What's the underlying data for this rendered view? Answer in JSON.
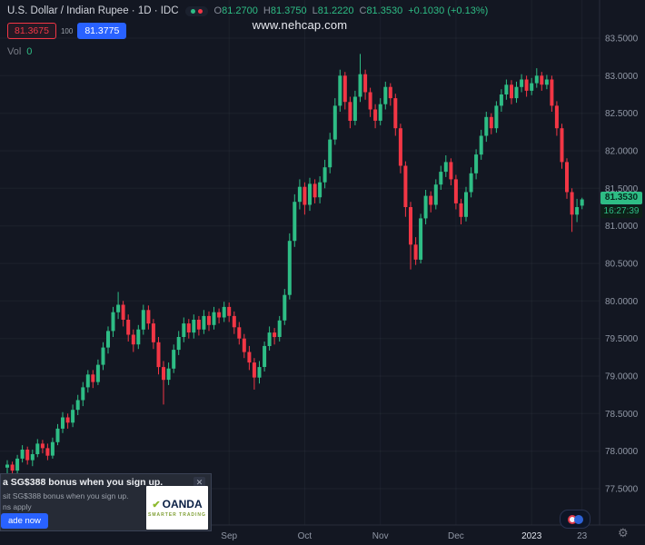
{
  "header": {
    "title": "U.S. Dollar / Indian Rupee · 1D · IDC",
    "ohlc": {
      "o_label": "O",
      "o": "81.2700",
      "h_label": "H",
      "h": "81.3750",
      "l_label": "L",
      "l": "81.2220",
      "c_label": "C",
      "c": "81.3530",
      "change": "+0.1030 (+0.13%)"
    },
    "sell_price": "81.3675",
    "quantity": "100",
    "buy_price": "81.3775",
    "vol_label": "Vol",
    "vol_value": "0"
  },
  "watermark": "www.nehcap.com",
  "price_label": {
    "value": "81.3530",
    "countdown": "16:27:39"
  },
  "ad": {
    "headline": "a SG$388 bonus when you sign up.",
    "subtext": "sit SG$388 bonus when you sign up.",
    "terms": "ns apply",
    "cta": "ade now",
    "brand": "OANDA",
    "brand_tagline": "SMARTER TRADING",
    "close": "✕"
  },
  "chart_data": {
    "type": "candlestick",
    "title": "U.S. Dollar / Indian Rupee",
    "interval": "1D",
    "exchange": "IDC",
    "y_range": [
      77.5,
      83.5
    ],
    "grid": true,
    "last_price": 81.353,
    "up_color": "#2ebd85",
    "down_color": "#f23645",
    "price_ticks": [
      "83.5000",
      "83.0000",
      "82.5000",
      "82.0000",
      "81.5000",
      "81.0000",
      "80.5000",
      "80.0000",
      "79.5000",
      "79.0000",
      "78.5000",
      "78.0000",
      "77.5000"
    ],
    "time_ticks": [
      {
        "label": "Sep",
        "index": 44,
        "major": false
      },
      {
        "label": "Oct",
        "index": 59,
        "major": false
      },
      {
        "label": "Nov",
        "index": 74,
        "major": false
      },
      {
        "label": "Dec",
        "index": 89,
        "major": false
      },
      {
        "label": "2023",
        "index": 104,
        "major": true
      },
      {
        "label": "23",
        "index": 114,
        "major": false
      }
    ],
    "ohlc": [
      [
        77.78,
        77.88,
        77.7,
        77.82
      ],
      [
        77.82,
        77.86,
        77.66,
        77.74
      ],
      [
        77.74,
        77.95,
        77.7,
        77.9
      ],
      [
        77.9,
        78.08,
        77.85,
        78.02
      ],
      [
        78.02,
        78.06,
        77.82,
        77.88
      ],
      [
        77.88,
        78.02,
        77.8,
        77.96
      ],
      [
        77.96,
        78.16,
        77.92,
        78.1
      ],
      [
        78.1,
        78.15,
        77.97,
        78.04
      ],
      [
        78.04,
        78.1,
        77.88,
        77.94
      ],
      [
        77.94,
        78.18,
        77.9,
        78.12
      ],
      [
        78.12,
        78.36,
        78.08,
        78.3
      ],
      [
        78.3,
        78.52,
        78.24,
        78.45
      ],
      [
        78.45,
        78.5,
        78.3,
        78.38
      ],
      [
        78.38,
        78.62,
        78.32,
        78.55
      ],
      [
        78.55,
        78.75,
        78.48,
        78.68
      ],
      [
        78.68,
        78.92,
        78.6,
        78.85
      ],
      [
        78.85,
        79.08,
        78.78,
        79.02
      ],
      [
        79.02,
        79.08,
        78.84,
        78.92
      ],
      [
        78.92,
        79.22,
        78.88,
        79.15
      ],
      [
        79.15,
        79.45,
        79.08,
        79.38
      ],
      [
        79.38,
        79.66,
        79.3,
        79.6
      ],
      [
        79.6,
        79.92,
        79.52,
        79.85
      ],
      [
        79.85,
        80.12,
        79.76,
        79.95
      ],
      [
        79.95,
        80.0,
        79.66,
        79.75
      ],
      [
        79.75,
        79.82,
        79.46,
        79.55
      ],
      [
        79.55,
        79.62,
        79.32,
        79.42
      ],
      [
        79.42,
        79.68,
        79.36,
        79.62
      ],
      [
        79.62,
        79.95,
        79.55,
        79.88
      ],
      [
        79.88,
        79.94,
        79.62,
        79.7
      ],
      [
        79.7,
        79.76,
        79.36,
        79.45
      ],
      [
        79.45,
        79.52,
        79.02,
        79.12
      ],
      [
        79.12,
        79.2,
        78.62,
        78.95
      ],
      [
        78.95,
        79.18,
        78.88,
        79.1
      ],
      [
        79.1,
        79.42,
        79.04,
        79.35
      ],
      [
        79.35,
        79.6,
        79.28,
        79.52
      ],
      [
        79.52,
        79.78,
        79.45,
        79.7
      ],
      [
        79.7,
        79.76,
        79.5,
        79.58
      ],
      [
        79.58,
        79.82,
        79.5,
        79.75
      ],
      [
        79.75,
        79.8,
        79.54,
        79.62
      ],
      [
        79.62,
        79.88,
        79.56,
        79.8
      ],
      [
        79.8,
        79.86,
        79.6,
        79.68
      ],
      [
        79.68,
        79.92,
        79.62,
        79.85
      ],
      [
        79.85,
        79.9,
        79.7,
        79.78
      ],
      [
        79.78,
        79.99,
        79.72,
        79.92
      ],
      [
        79.92,
        79.98,
        79.72,
        79.8
      ],
      [
        79.8,
        79.86,
        79.56,
        79.65
      ],
      [
        79.65,
        79.72,
        79.42,
        79.5
      ],
      [
        79.5,
        79.56,
        79.24,
        79.32
      ],
      [
        79.32,
        79.4,
        79.08,
        79.18
      ],
      [
        79.18,
        79.24,
        78.82,
        78.98
      ],
      [
        78.98,
        79.2,
        78.9,
        79.12
      ],
      [
        79.12,
        79.46,
        79.06,
        79.4
      ],
      [
        79.4,
        79.66,
        79.34,
        79.58
      ],
      [
        79.58,
        79.64,
        79.42,
        79.52
      ],
      [
        79.52,
        79.8,
        79.46,
        79.74
      ],
      [
        79.74,
        80.16,
        79.68,
        80.08
      ],
      [
        80.08,
        80.9,
        80.02,
        80.8
      ],
      [
        80.8,
        81.42,
        80.72,
        81.32
      ],
      [
        81.32,
        81.62,
        81.22,
        81.52
      ],
      [
        81.52,
        81.58,
        81.15,
        81.28
      ],
      [
        81.28,
        81.64,
        81.2,
        81.56
      ],
      [
        81.56,
        81.62,
        81.3,
        81.38
      ],
      [
        81.38,
        81.66,
        81.3,
        81.58
      ],
      [
        81.58,
        81.88,
        81.5,
        81.78
      ],
      [
        81.78,
        82.24,
        81.7,
        82.15
      ],
      [
        82.15,
        82.7,
        82.08,
        82.6
      ],
      [
        82.6,
        83.08,
        82.52,
        83.0
      ],
      [
        83.0,
        83.05,
        82.55,
        82.65
      ],
      [
        82.65,
        82.72,
        82.3,
        82.4
      ],
      [
        82.4,
        82.8,
        82.34,
        82.72
      ],
      [
        82.72,
        83.29,
        82.65,
        83.02
      ],
      [
        83.02,
        83.08,
        82.68,
        82.78
      ],
      [
        82.78,
        82.84,
        82.45,
        82.55
      ],
      [
        82.55,
        82.62,
        82.3,
        82.4
      ],
      [
        82.4,
        82.7,
        82.34,
        82.62
      ],
      [
        82.62,
        82.92,
        82.55,
        82.85
      ],
      [
        82.85,
        82.9,
        82.6,
        82.7
      ],
      [
        82.7,
        82.76,
        82.2,
        82.3
      ],
      [
        82.3,
        82.36,
        81.7,
        81.8
      ],
      [
        81.8,
        81.86,
        81.12,
        81.25
      ],
      [
        81.25,
        81.32,
        80.42,
        80.75
      ],
      [
        80.75,
        80.85,
        80.48,
        80.55
      ],
      [
        80.55,
        81.16,
        80.5,
        81.1
      ],
      [
        81.1,
        81.48,
        81.02,
        81.4
      ],
      [
        81.4,
        81.46,
        81.18,
        81.28
      ],
      [
        81.28,
        81.62,
        81.22,
        81.55
      ],
      [
        81.55,
        81.8,
        81.48,
        81.72
      ],
      [
        81.72,
        81.94,
        81.65,
        81.85
      ],
      [
        81.85,
        81.9,
        81.54,
        81.62
      ],
      [
        81.62,
        81.68,
        81.22,
        81.3
      ],
      [
        81.3,
        81.36,
        81.02,
        81.12
      ],
      [
        81.12,
        81.52,
        81.06,
        81.45
      ],
      [
        81.45,
        81.78,
        81.38,
        81.7
      ],
      [
        81.7,
        82.02,
        81.62,
        81.95
      ],
      [
        81.95,
        82.28,
        81.88,
        82.2
      ],
      [
        82.2,
        82.52,
        82.12,
        82.45
      ],
      [
        82.45,
        82.5,
        82.22,
        82.3
      ],
      [
        82.3,
        82.66,
        82.24,
        82.6
      ],
      [
        82.6,
        82.82,
        82.52,
        82.75
      ],
      [
        82.75,
        82.95,
        82.68,
        82.88
      ],
      [
        82.88,
        82.94,
        82.62,
        82.7
      ],
      [
        82.7,
        82.92,
        82.64,
        82.85
      ],
      [
        82.85,
        83.02,
        82.78,
        82.95
      ],
      [
        82.95,
        83.0,
        82.72,
        82.8
      ],
      [
        82.8,
        82.97,
        82.74,
        82.9
      ],
      [
        82.9,
        83.1,
        82.84,
        83.0
      ],
      [
        83.0,
        83.05,
        82.8,
        82.88
      ],
      [
        82.88,
        83.01,
        82.82,
        82.95
      ],
      [
        82.95,
        83.0,
        82.52,
        82.6
      ],
      [
        82.6,
        82.66,
        82.2,
        82.3
      ],
      [
        82.3,
        82.36,
        81.76,
        81.85
      ],
      [
        81.85,
        81.9,
        81.36,
        81.45
      ],
      [
        81.45,
        81.5,
        80.92,
        81.15
      ],
      [
        81.15,
        81.36,
        81.05,
        81.25
      ],
      [
        81.27,
        81.375,
        81.222,
        81.353
      ]
    ]
  }
}
